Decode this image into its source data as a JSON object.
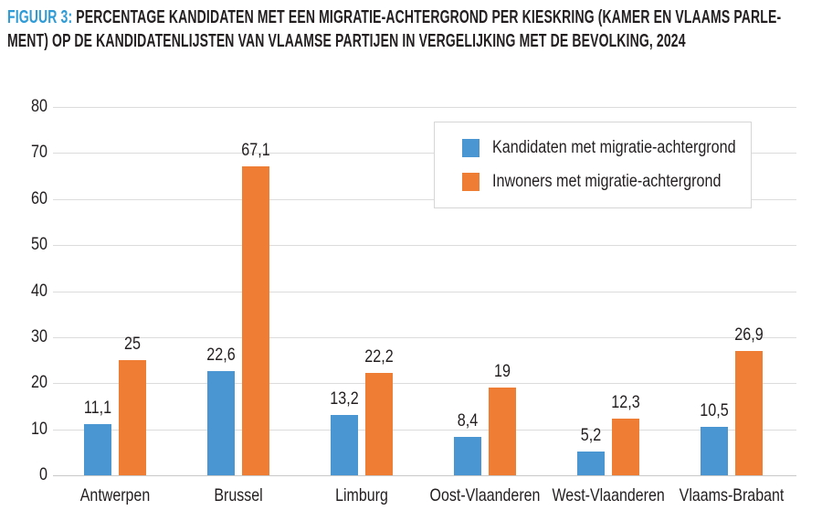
{
  "figure": {
    "label": "FIGUUR 3:",
    "title_line1": "PERCENTAGE KANDIDATEN MET EEN MIGRATIE-ACHTERGROND PER KIESKRING (KAMER EN VLAAMS PARLE-",
    "title_line2": "MENT) OP DE KANDIDATENLIJSTEN VAN VLAAMSE PARTIJEN IN VERGELIJKING MET DE BEVOLKING, 2024"
  },
  "colors": {
    "accent_blue": "#2e9bd6",
    "bar_blue": "#4a96d2",
    "bar_orange": "#ef7d33",
    "grid": "#dcdcdc",
    "axis_line": "#c9c9c9",
    "text": "#231f20",
    "legend_border": "#d6d6d6"
  },
  "legend": {
    "items": [
      {
        "label": "Kandidaten met migratie-achtergrond",
        "color": "#4a96d2"
      },
      {
        "label": "Inwoners met migratie-achtergrond",
        "color": "#ef7d33"
      }
    ]
  },
  "chart_data": {
    "type": "bar",
    "title": "FIGUUR 3: PERCENTAGE KANDIDATEN MET EEN MIGRATIE-ACHTERGROND PER KIESKRING (KAMER EN VLAAMS PARLEMENT) OP DE KANDIDATENLIJSTEN VAN VLAAMSE PARTIJEN IN VERGELIJKING MET DE BEVOLKING, 2024",
    "categories": [
      "Antwerpen",
      "Brussel",
      "Limburg",
      "Oost-Vlaanderen",
      "West-Vlaanderen",
      "Vlaams-Brabant"
    ],
    "series": [
      {
        "name": "Kandidaten met migratie-achtergrond",
        "color": "#4a96d2",
        "values": [
          11.1,
          22.6,
          13.2,
          8.4,
          5.2,
          10.5
        ],
        "labels": [
          "11,1",
          "22,6",
          "13,2",
          "8,4",
          "5,2",
          "10,5"
        ]
      },
      {
        "name": "Inwoners met migratie-achtergrond",
        "color": "#ef7d33",
        "values": [
          25,
          67.1,
          22.2,
          19,
          12.3,
          26.9
        ],
        "labels": [
          "25",
          "67,1",
          "22,2",
          "19",
          "12,3",
          "26,9"
        ]
      }
    ],
    "ylim": [
      0,
      80
    ],
    "yticks": [
      0,
      10,
      20,
      30,
      40,
      50,
      60,
      70,
      80
    ],
    "xlabel": "",
    "ylabel": "",
    "grid": true,
    "legend_position": "top-right",
    "value_labels": true
  }
}
